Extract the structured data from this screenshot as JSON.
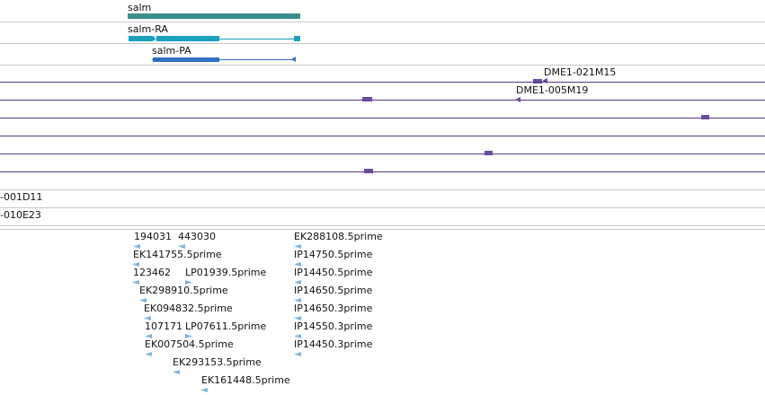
{
  "tracks": {
    "gene": {
      "label": "salm",
      "color": "#3a8f8c"
    },
    "transcripts": [
      {
        "label": "salm-RA",
        "color": "#1aa2bd"
      },
      {
        "label": "salm-PA",
        "color": "#2f6fc2"
      }
    ],
    "clones": [
      {
        "label": "DME1-021M15",
        "color": "#6b4b9f"
      },
      {
        "label": "DME1-005M19",
        "color": "#6b4b9f"
      },
      {
        "label": "-001D11",
        "color": "#6b4b9f"
      },
      {
        "label": "-010E23",
        "color": "#6b4b9f"
      }
    ],
    "ests": [
      {
        "label": "194031",
        "dir": "left"
      },
      {
        "label": "443030",
        "dir": "left"
      },
      {
        "label": "EK288108.5prime",
        "dir": "left"
      },
      {
        "label": "EK141755.5prime",
        "dir": "left"
      },
      {
        "label": "IP14750.5prime",
        "dir": "left"
      },
      {
        "label": "123462",
        "dir": "left"
      },
      {
        "label": "LP01939.5prime",
        "dir": "right"
      },
      {
        "label": "IP14450.5prime",
        "dir": "left"
      },
      {
        "label": "EK298910.5prime",
        "dir": "left"
      },
      {
        "label": "IP14650.5prime",
        "dir": "left"
      },
      {
        "label": "EK094832.5prime",
        "dir": "left"
      },
      {
        "label": "IP14650.3prime",
        "dir": "left"
      },
      {
        "label": "107171",
        "dir": "left"
      },
      {
        "label": "LP07611.5prime",
        "dir": "right"
      },
      {
        "label": "IP14550.3prime",
        "dir": "left"
      },
      {
        "label": "EK007504.5prime",
        "dir": "left"
      },
      {
        "label": "IP14450.3prime",
        "dir": "left"
      },
      {
        "label": "EK293153.5prime",
        "dir": "left"
      },
      {
        "label": "EK161448.5prime",
        "dir": "left"
      }
    ]
  },
  "colors": {
    "separator": "#c8c8c8",
    "clone_line": "#53397f",
    "est": "#7fb6da"
  }
}
